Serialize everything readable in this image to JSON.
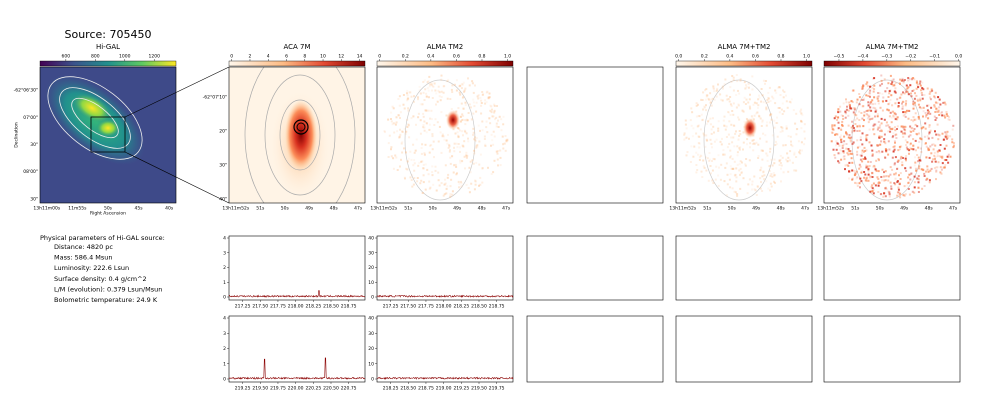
{
  "title": "Source: 705450",
  "images": [
    {
      "title": "Hi-GAL",
      "colorbar_ticks": [
        "600",
        "800",
        "1000",
        "1200"
      ],
      "y_ticks": [
        "-62°06'30\"",
        "07'00\"",
        "30\"",
        "08'00\"",
        "30\""
      ],
      "x_ticks": [
        "13h11m00s",
        "11m55s",
        "50s",
        "45s",
        "40s"
      ],
      "x_label": "Right Ascension",
      "y_label": "Declination"
    },
    {
      "title": "ACA 7M",
      "colorbar_ticks": [
        "0",
        "2",
        "4",
        "6",
        "8",
        "10",
        "12",
        "14"
      ],
      "y_ticks": [
        "-62°07'10\"",
        "20\"",
        "30\"",
        "40\""
      ],
      "x_ticks": [
        "13h11m52s",
        "51s",
        "50s",
        "49s",
        "48s",
        "47s"
      ]
    },
    {
      "title": "ALMA TM2",
      "colorbar_ticks": [
        "0",
        "0.2",
        "0.4",
        "0.6",
        "0.8",
        "1.0"
      ],
      "x_ticks": [
        "13h11m52s",
        "51s",
        "50s",
        "49s",
        "48s",
        "47s"
      ]
    },
    {
      "title": "ALMA 7M+TM2",
      "colorbar_ticks": [
        "0.0",
        "0.2",
        "0.4",
        "0.6",
        "0.8",
        "1.0"
      ],
      "x_ticks": [
        "13h11m52s",
        "51s",
        "50s",
        "49s",
        "48s",
        "47s"
      ]
    },
    {
      "title": "ALMA 7M+TM2",
      "colorbar_ticks": [
        "−0.5",
        "−0.4",
        "−0.3",
        "−0.2",
        "−0.1",
        "0.0"
      ],
      "x_ticks": [
        "13h11m52s",
        "51s",
        "50s",
        "49s",
        "48s",
        "47s"
      ]
    }
  ],
  "info": {
    "heading": "Physical parameters of Hi-GAL source:",
    "lines": [
      "Distance: 4820 pc",
      "Mass: 586.4 Msun",
      "Luminosity: 222.6 Lsun",
      "Surface density: 0.4 g/cm^2",
      "L/M (evolution): 0.379 Lsun/Msun",
      "Bolometric temperature: 24.9 K"
    ]
  },
  "spectra": [
    {
      "y_ticks": [
        "0",
        "1",
        "2",
        "3",
        "4"
      ],
      "x_ticks": [
        "217.25",
        "217.50",
        "217.75",
        "218.00",
        "218.25",
        "218.50",
        "218.75"
      ]
    },
    {
      "y_ticks": [
        "0",
        "10",
        "20",
        "30",
        "40"
      ],
      "x_ticks": [
        "217.25",
        "217.50",
        "217.75",
        "218.00",
        "218.25",
        "218.50",
        "218.75"
      ]
    },
    {
      "y_ticks": [
        "0",
        "1",
        "2",
        "3",
        "4"
      ],
      "x_ticks": [
        "219.25",
        "219.50",
        "219.75",
        "220.00",
        "220.25",
        "220.50",
        "220.75"
      ]
    },
    {
      "y_ticks": [
        "0",
        "10",
        "20",
        "30",
        "40"
      ],
      "x_ticks": [
        "218.25",
        "218.50",
        "218.75",
        "219.00",
        "219.25",
        "219.50",
        "219.75"
      ]
    }
  ]
}
